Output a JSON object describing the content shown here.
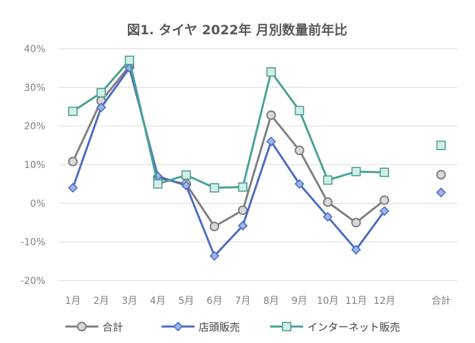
{
  "chart_data": {
    "type": "line",
    "title": "図1. タイヤ 2022年 月別数量前年比",
    "categories": [
      "1月",
      "2月",
      "3月",
      "4月",
      "5月",
      "6月",
      "7月",
      "8月",
      "9月",
      "10月",
      "11月",
      "12月",
      "",
      "合計"
    ],
    "ylim": [
      -20,
      40
    ],
    "yticks": [
      -20,
      -10,
      0,
      10,
      20,
      30,
      40
    ],
    "ytick_labels": [
      "-20%",
      "-10%",
      "0%",
      "10%",
      "20%",
      "30%",
      "40%"
    ],
    "grid": true,
    "legend": "bottom",
    "series": [
      {
        "name": "合計",
        "color": "#7f7f7f",
        "marker": "circle",
        "marker_fill": "#d9d9d9",
        "values": [
          10.8,
          26.5,
          35.5,
          6.5,
          5.0,
          -6.0,
          -1.8,
          22.8,
          13.7,
          0.3,
          -5.0,
          0.8,
          null,
          7.4
        ]
      },
      {
        "name": "店頭販売",
        "color": "#4a6cc2",
        "marker": "diamond",
        "marker_fill": "#9eb5e8",
        "values": [
          4.0,
          24.8,
          35.0,
          7.0,
          4.6,
          -13.6,
          -5.8,
          16.0,
          5.0,
          -3.5,
          -12.0,
          -2.0,
          null,
          2.8
        ]
      },
      {
        "name": "インターネット販売",
        "color": "#4aa096",
        "marker": "square",
        "marker_fill": "#d4ede8",
        "values": [
          23.8,
          28.6,
          37.0,
          5.0,
          7.3,
          4.0,
          4.2,
          34.0,
          24.0,
          6.0,
          8.2,
          8.0,
          null,
          15.0
        ]
      }
    ]
  }
}
